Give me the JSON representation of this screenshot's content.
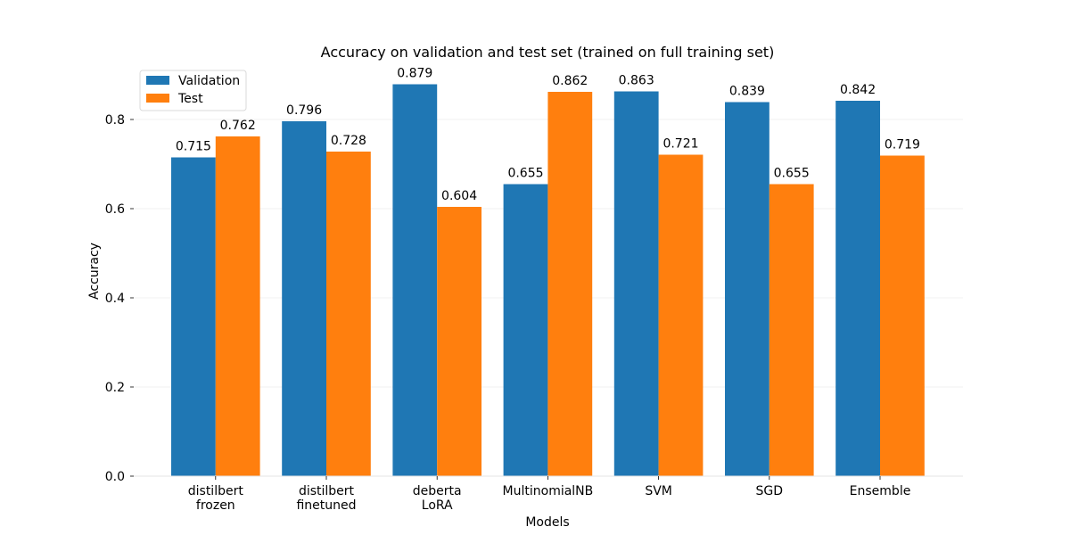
{
  "chart_data": {
    "type": "bar",
    "title": "Accuracy on validation and test set (trained on full training set)",
    "xlabel": "Models",
    "ylabel": "Accuracy",
    "categories": [
      [
        "distilbert",
        "frozen"
      ],
      [
        "distilbert",
        "finetuned"
      ],
      [
        "deberta",
        "LoRA"
      ],
      [
        "MultinomialNB"
      ],
      [
        "SVM"
      ],
      [
        "SGD"
      ],
      [
        "Ensemble"
      ]
    ],
    "series": [
      {
        "name": "Validation",
        "color": "#1f77b4",
        "values": [
          0.715,
          0.796,
          0.879,
          0.655,
          0.863,
          0.839,
          0.842
        ]
      },
      {
        "name": "Test",
        "color": "#ff7f0e",
        "values": [
          0.762,
          0.728,
          0.604,
          0.862,
          0.721,
          0.655,
          0.719
        ]
      }
    ],
    "ylim": [
      0,
      0.8
    ],
    "yticks": [
      "0.0",
      "0.2",
      "0.4",
      "0.6",
      "0.8"
    ],
    "data_labels": true,
    "grid": "horizontal",
    "legend_position": "top-left"
  }
}
